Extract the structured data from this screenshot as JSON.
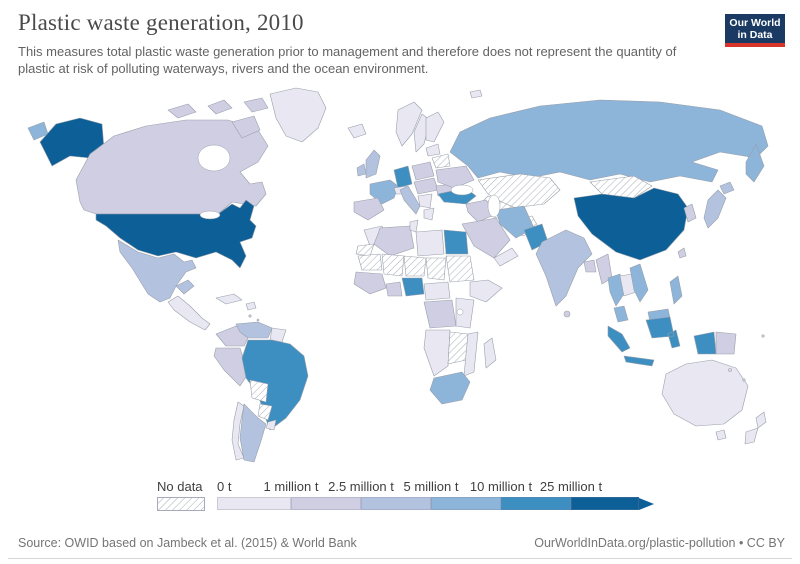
{
  "header": {
    "title": "Plastic waste generation, 2010",
    "subtitle": "This measures total plastic waste generation prior to management and therefore does not represent the quantity of plastic at risk of polluting waterways, rivers and the ocean environment.",
    "logo": {
      "line1": "Our World",
      "line2": "in Data",
      "bg_color": "#1b3a63",
      "accent_color": "#d8352a"
    }
  },
  "legend": {
    "no_data_label": "No data"
  },
  "footer": {
    "source": "Source: OWID based on Jambeck et al. (2015) & World Bank",
    "link": "OurWorldInData.org/plastic-pollution • CC BY"
  },
  "chart_data": {
    "type": "heatmap",
    "subtype": "world-choropleth",
    "title": "Plastic waste generation, 2010",
    "unit": "tonnes of plastic waste per year",
    "legend_position": "bottom",
    "grid": false,
    "ocean_color": "#ffffff",
    "border_color": "#98a0aa",
    "bins": [
      {
        "tick": "0 t",
        "range": "0–1 million t",
        "color": "#e8e7f2"
      },
      {
        "tick": "1 million t",
        "range": "1–2.5 million t",
        "color": "#cfcee3"
      },
      {
        "tick": "2.5 million t",
        "range": "2.5–5 million t",
        "color": "#b3c3df"
      },
      {
        "tick": "5 million t",
        "range": "5–10 million t",
        "color": "#8db4d9"
      },
      {
        "tick": "10 million t",
        "range": "10–25 million t",
        "color": "#3d8ec1"
      },
      {
        "tick": "25 million t",
        "range": ">25 million t",
        "color": "#0d5f97"
      }
    ],
    "no_data": {
      "label": "No data",
      "pattern": "diagonal-hatch",
      "hatch_color": "#a9adb6"
    },
    "countries": {
      "United States": ">25 million t",
      "China": ">25 million t",
      "Germany": "10–25 million t",
      "Brazil": "10–25 million t",
      "Nigeria": "10–25 million t",
      "Turkey": "10–25 million t",
      "Egypt": "10–25 million t",
      "Indonesia": "10–25 million t",
      "Pakistan": "10–25 million t",
      "Russia": "5–10 million t",
      "France": "5–10 million t",
      "Iran": "5–10 million t",
      "Thailand": "5–10 million t",
      "Vietnam": "5–10 million t",
      "Philippines": "5–10 million t",
      "Malaysia": "5–10 million t",
      "South Africa": "5–10 million t",
      "United Kingdom": "2.5–5 million t",
      "Ireland": "2.5–5 million t",
      "Japan": "2.5–5 million t",
      "Italy": "2.5–5 million t",
      "Mexico": "2.5–5 million t",
      "India": "2.5–5 million t",
      "Argentina": "2.5–5 million t",
      "Venezuela": "2.5–5 million t",
      "Canada": "1–2.5 million t",
      "Spain": "1–2.5 million t",
      "Poland": "1–2.5 million t",
      "Ukraine": "1–2.5 million t",
      "Romania": "1–2.5 million t",
      "Hungary": "1–2.5 million t",
      "Colombia": "1–2.5 million t",
      "Peru": "1–2.5 million t",
      "Algeria": "1–2.5 million t",
      "Saudi Arabia": "1–2.5 million t",
      "Iraq": "1–2.5 million t",
      "Democratic Republic of Congo": "1–2.5 million t",
      "South Korea": "1–2.5 million t",
      "Senegal": "1–2.5 million t",
      "Ghana": "1–2.5 million t",
      "Myanmar": "1–2.5 million t",
      "Bangladesh": "1–2.5 million t",
      "Sri Lanka": "1–2.5 million t",
      "Taiwan": "1–2.5 million t",
      "Papua New Guinea": "1–2.5 million t",
      "Greenland": "0–1 million t",
      "Iceland": "0–1 million t",
      "Norway": "0–1 million t",
      "Sweden": "0–1 million t",
      "Finland": "0–1 million t",
      "Lithuania": "0–1 million t",
      "Serbia": "0–1 million t",
      "Greece": "0–1 million t",
      "Austria": "0–1 million t",
      "Chile": "0–1 million t",
      "Uruguay": "0–1 million t",
      "Guatemala": "0–1 million t",
      "Cuba": "0–1 million t",
      "Guyana": "0–1 million t",
      "Morocco": "0–1 million t",
      "Tunisia": "0–1 million t",
      "Libya": "0–1 million t",
      "Cameroon": "0–1 million t",
      "Ethiopia": "0–1 million t",
      "Kenya": "0–1 million t",
      "Angola": "0–1 million t",
      "Mozambique": "0–1 million t",
      "Madagascar": "0–1 million t",
      "Yemen": "0–1 million t",
      "Laos": "0–1 million t",
      "Australia": "0–1 million t",
      "New Zealand": "0–1 million t",
      "Kazakhstan": "No data",
      "Uzbekistan": "No data",
      "Afghanistan": "No data",
      "Mongolia": "No data",
      "Belarus": "No data",
      "Mauritania": "No data",
      "Mali": "No data",
      "Niger": "No data",
      "Chad": "No data",
      "Sudan": "No data",
      "Zambia": "No data",
      "Bolivia": "No data",
      "Paraguay": "No data",
      "Western Sahara": "No data"
    }
  }
}
